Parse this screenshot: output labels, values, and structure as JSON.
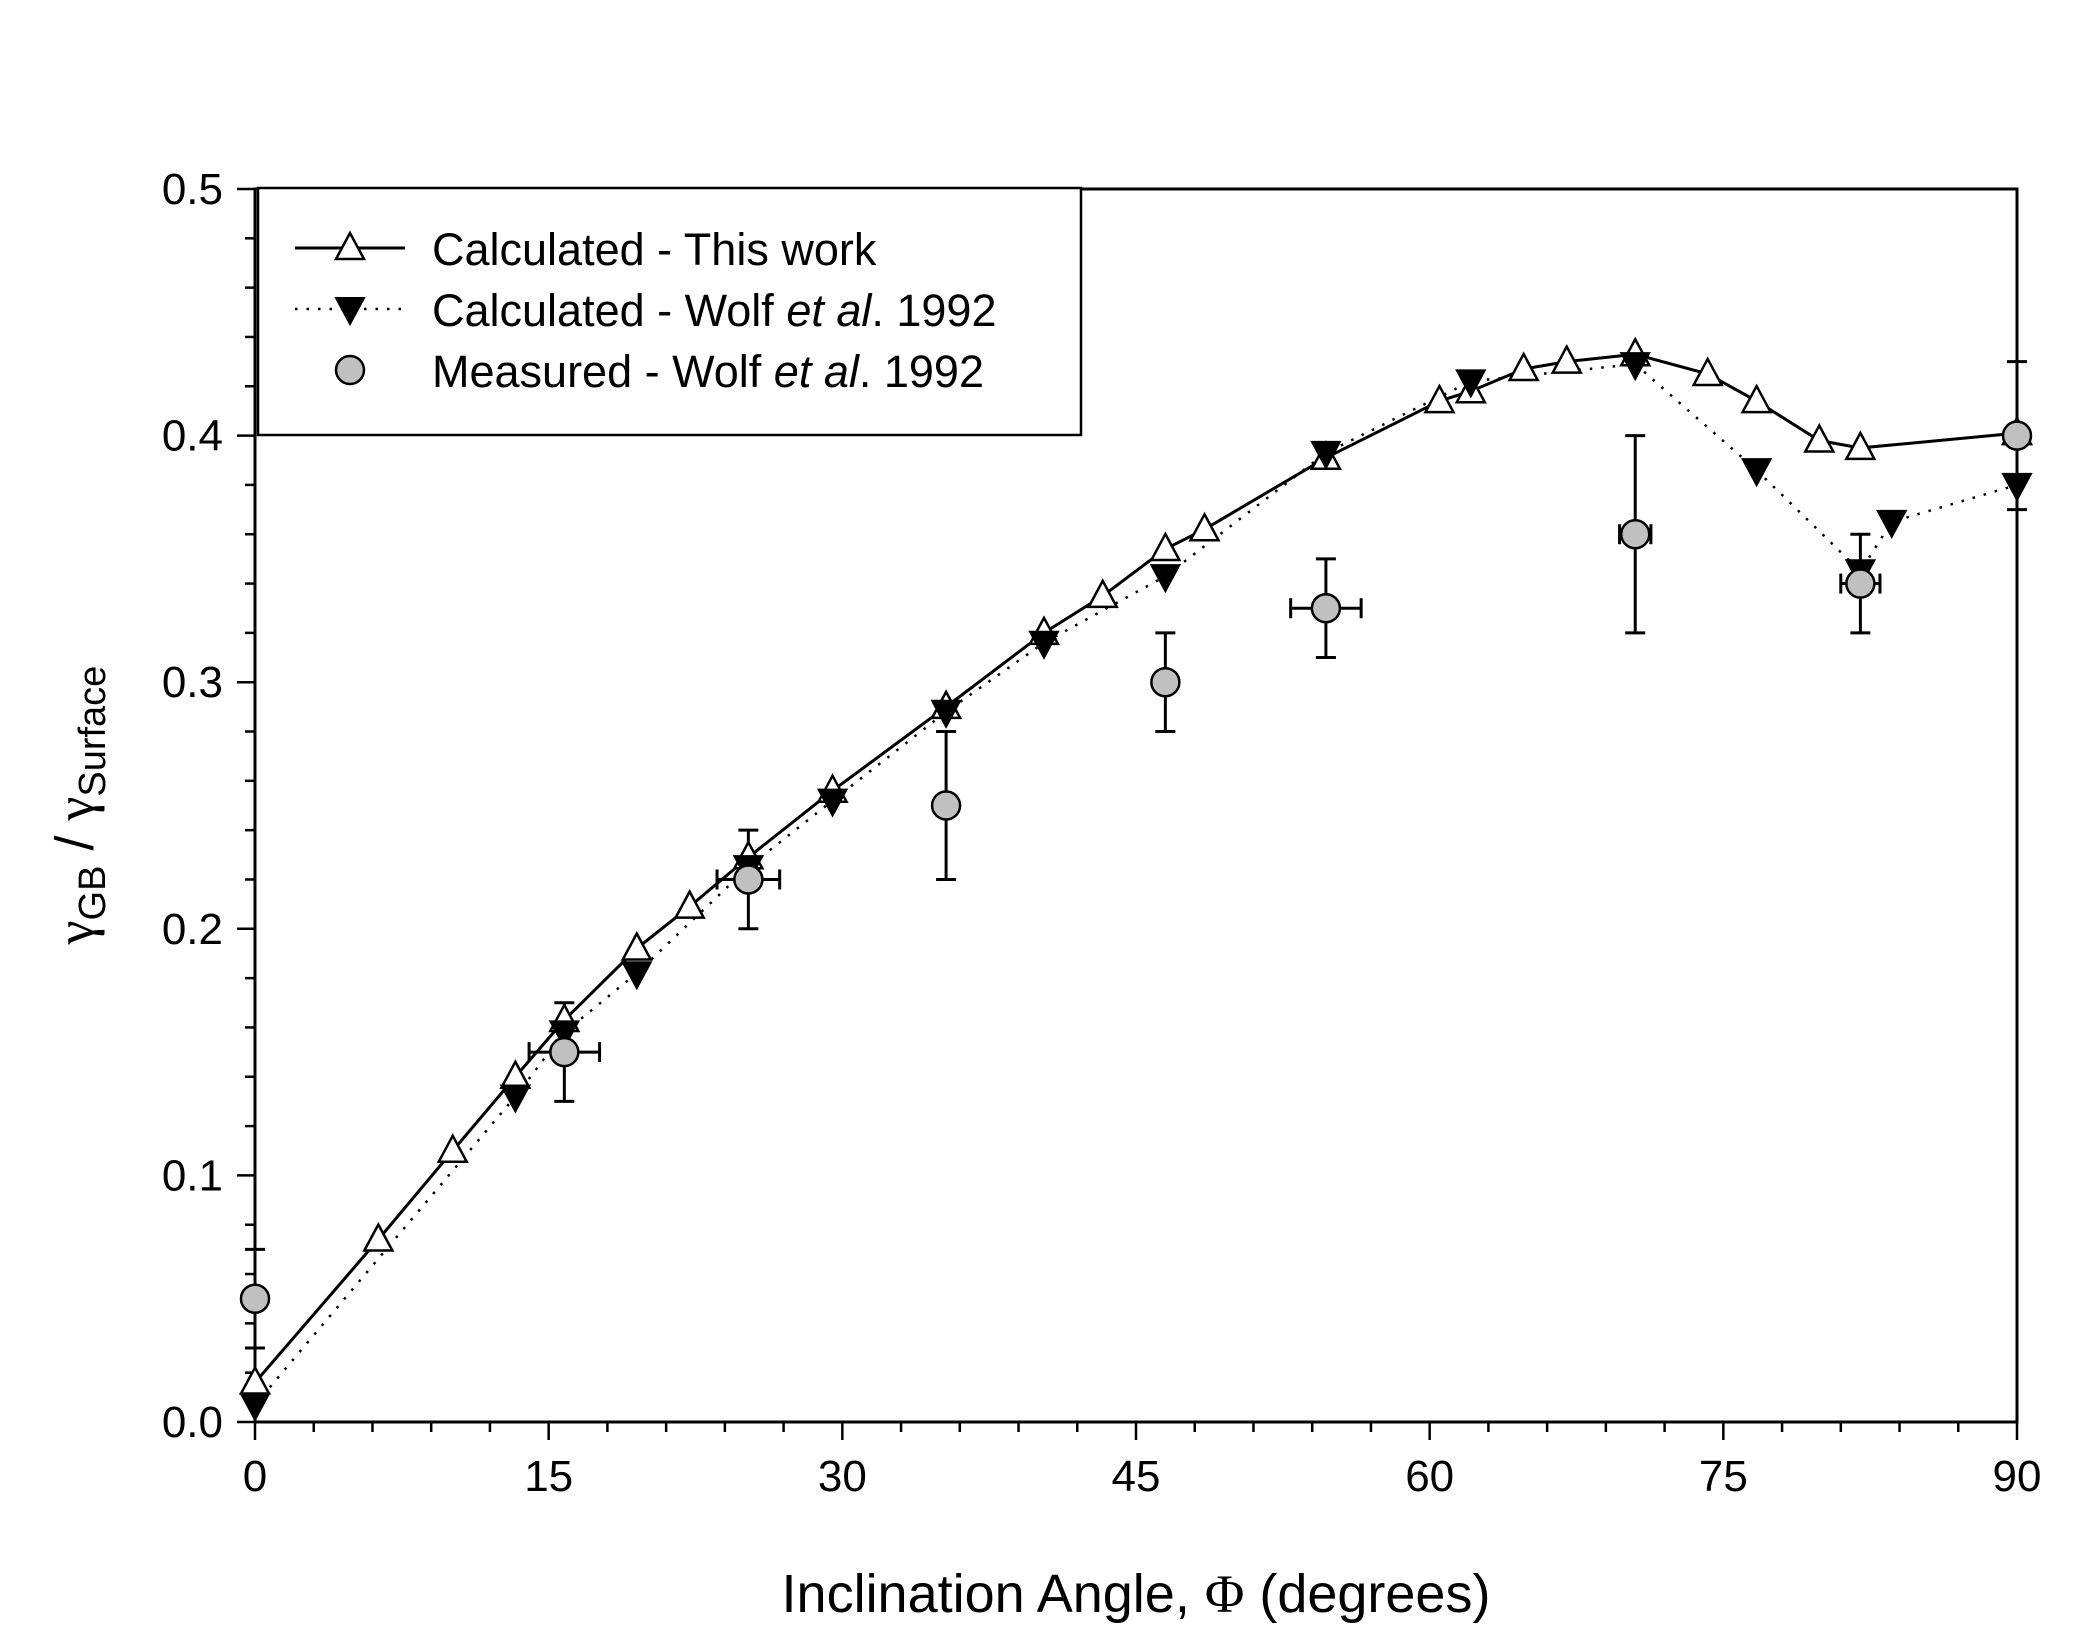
{
  "chart_data": {
    "type": "scatter",
    "title": "",
    "xlabel": {
      "text": "Inclination Angle, ",
      "symbol": "Φ",
      "unit": " (degrees)"
    },
    "ylabel": {
      "gamma": "γ",
      "numerator_sub": "GB",
      "slash": " / ",
      "denominator_sub": "Surface"
    },
    "xlim": [
      0,
      90
    ],
    "ylim": [
      0,
      0.5
    ],
    "x_ticks": [
      0,
      15,
      30,
      45,
      60,
      75,
      90
    ],
    "x_tick_labels": [
      "0",
      "15",
      "30",
      "45",
      "60",
      "75",
      "90"
    ],
    "y_ticks": [
      0,
      0.1,
      0.2,
      0.3,
      0.4,
      0.5
    ],
    "y_tick_labels": [
      "0.0",
      "0.1",
      "0.2",
      "0.3",
      "0.4",
      "0.5"
    ],
    "x_minor_step": 3,
    "y_minor_step": 0.02,
    "grid": false,
    "legend_position": "top-left",
    "series": [
      {
        "name": "Calculated - This work",
        "legend": {
          "main": "Calculated - This work",
          "italic": "",
          "tail": ""
        },
        "marker": "triangle-up-open",
        "line": "solid",
        "color": "#000000",
        "x": [
          0,
          6.3,
          10.1,
          13.3,
          15.8,
          19.5,
          22.2,
          25.2,
          29.5,
          35.3,
          40.3,
          43.3,
          46.5,
          48.5,
          54.7,
          60.5,
          62.1,
          64.8,
          67.0,
          70.5,
          74.2,
          76.7,
          79.9,
          82.0,
          90
        ],
        "y": [
          0.016,
          0.074,
          0.11,
          0.14,
          0.163,
          0.192,
          0.209,
          0.229,
          0.256,
          0.29,
          0.32,
          0.335,
          0.354,
          0.362,
          0.391,
          0.414,
          0.418,
          0.427,
          0.43,
          0.433,
          0.425,
          0.414,
          0.398,
          0.395,
          0.401
        ]
      },
      {
        "name": "Calculated - Wolf et al. 1992",
        "legend": {
          "main": "Calculated - Wolf ",
          "italic": "et al",
          "tail": ". 1992"
        },
        "marker": "triangle-down-filled",
        "line": "dotted",
        "color": "#000000",
        "x": [
          0,
          13.3,
          15.8,
          19.5,
          25.2,
          29.5,
          35.3,
          40.3,
          46.5,
          54.7,
          62.1,
          70.5,
          76.7,
          82.0,
          83.6,
          90
        ],
        "y": [
          0.007,
          0.132,
          0.158,
          0.182,
          0.225,
          0.252,
          0.288,
          0.316,
          0.343,
          0.393,
          0.422,
          0.429,
          0.386,
          0.345,
          0.365,
          0.38
        ]
      },
      {
        "name": "Measured - Wolf et al. 1992",
        "legend": {
          "main": "Measured - Wolf ",
          "italic": "et al",
          "tail": ". 1992"
        },
        "marker": "circle-gray",
        "line": "none",
        "color": "#c0c0c0",
        "x": [
          0,
          15.8,
          25.2,
          35.3,
          46.5,
          54.7,
          70.5,
          82.0,
          90
        ],
        "y": [
          0.05,
          0.15,
          0.22,
          0.25,
          0.3,
          0.33,
          0.36,
          0.34,
          0.4
        ],
        "y_err": [
          0.02,
          0.02,
          0.02,
          0.03,
          0.02,
          0.02,
          0.04,
          0.02,
          0.03
        ],
        "x_err": [
          0.5,
          1.8,
          1.6,
          0,
          0,
          1.8,
          0.8,
          1.0,
          0
        ]
      }
    ]
  }
}
